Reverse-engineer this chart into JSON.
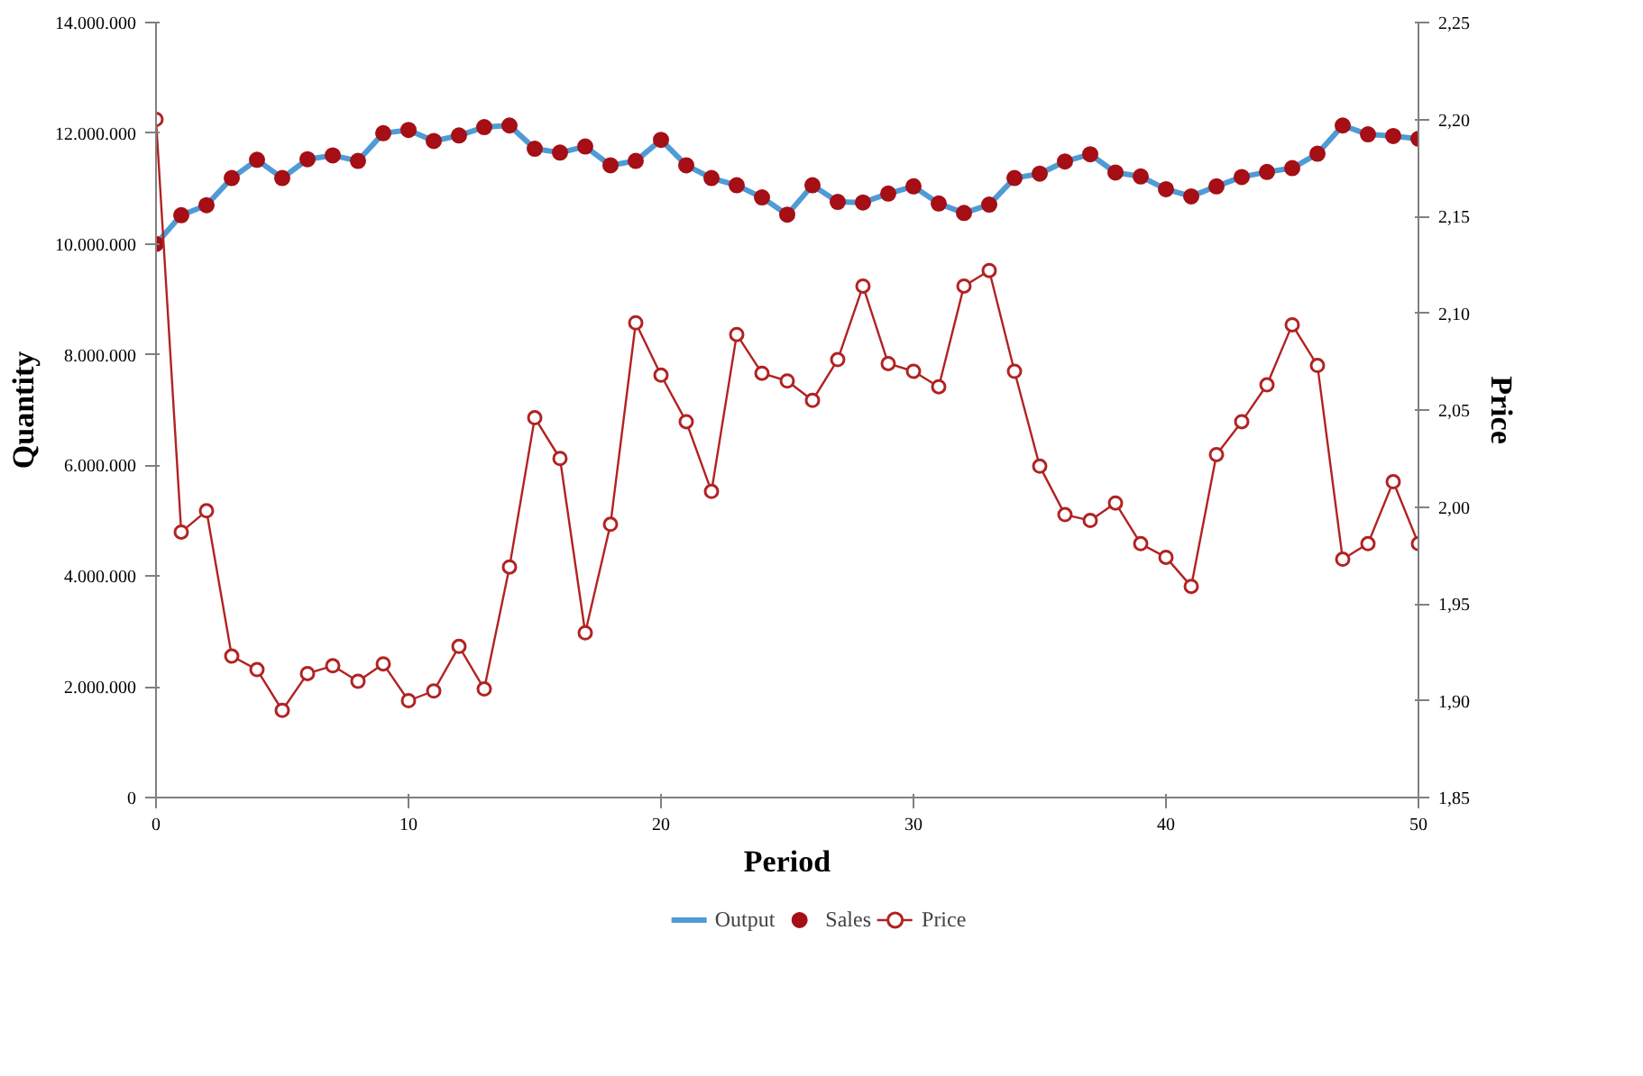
{
  "chart_data": {
    "type": "line",
    "xlabel": "Period",
    "ylabel": "Quantity",
    "y2label": "Price",
    "x": [
      0,
      1,
      2,
      3,
      4,
      5,
      6,
      7,
      8,
      9,
      10,
      11,
      12,
      13,
      14,
      15,
      16,
      17,
      18,
      19,
      20,
      21,
      22,
      23,
      24,
      25,
      26,
      27,
      28,
      29,
      30,
      31,
      32,
      33,
      34,
      35,
      36,
      37,
      38,
      39,
      40,
      41,
      42,
      43,
      44,
      45,
      46,
      47,
      48,
      49,
      50
    ],
    "series": [
      {
        "name": "Output",
        "color": "#4f9bd5",
        "marker": "none",
        "values": [
          10000000,
          10520000,
          10700000,
          11190000,
          11520000,
          11190000,
          11530000,
          11600000,
          11500000,
          12000000,
          12060000,
          11860000,
          11960000,
          12110000,
          12140000,
          11720000,
          11650000,
          11760000,
          11420000,
          11500000,
          11880000,
          11420000,
          11190000,
          11060000,
          10840000,
          10530000,
          11060000,
          10760000,
          10750000,
          10910000,
          11040000,
          10730000,
          10560000,
          10710000,
          11190000,
          11270000,
          11490000,
          11620000,
          11290000,
          11220000,
          10990000,
          10860000,
          11040000,
          11210000,
          11300000,
          11370000,
          11630000,
          12140000,
          11980000,
          11950000,
          11900000
        ]
      },
      {
        "name": "Sales",
        "type": "scatter",
        "color": "#a50f15",
        "marker": "circle",
        "values": [
          10000000,
          10520000,
          10700000,
          11190000,
          11520000,
          11190000,
          11530000,
          11600000,
          11500000,
          12000000,
          12060000,
          11860000,
          11960000,
          12110000,
          12140000,
          11720000,
          11650000,
          11760000,
          11420000,
          11500000,
          11880000,
          11420000,
          11190000,
          11060000,
          10840000,
          10530000,
          11060000,
          10760000,
          10750000,
          10910000,
          11040000,
          10730000,
          10560000,
          10710000,
          11190000,
          11270000,
          11490000,
          11620000,
          11290000,
          11220000,
          10990000,
          10860000,
          11040000,
          11210000,
          11300000,
          11370000,
          11630000,
          12140000,
          11980000,
          11950000,
          11900000
        ]
      },
      {
        "name": "Price",
        "axis": "y2",
        "color": "#b22222",
        "marker": "circle",
        "values": [
          2.2,
          1.987,
          1.998,
          1.923,
          1.916,
          1.895,
          1.914,
          1.918,
          1.91,
          1.919,
          1.9,
          1.905,
          1.928,
          1.906,
          1.969,
          2.046,
          2.025,
          1.935,
          1.991,
          2.095,
          2.068,
          2.044,
          2.008,
          2.089,
          2.069,
          2.065,
          2.055,
          2.076,
          2.114,
          2.074,
          2.07,
          2.062,
          2.114,
          2.122,
          2.07,
          2.021,
          1.996,
          1.993,
          2.002,
          1.981,
          1.974,
          1.959,
          2.027,
          2.044,
          2.063,
          2.094,
          2.073,
          1.973,
          1.981,
          2.013,
          1.981
        ]
      }
    ],
    "xlim": [
      0,
      50
    ],
    "xticks": [
      0,
      10,
      20,
      30,
      40,
      50
    ],
    "ylim": [
      0,
      14000000
    ],
    "yticks": [
      {
        "value": 0,
        "label": "0"
      },
      {
        "value": 2000000,
        "label": "2.000.000"
      },
      {
        "value": 4000000,
        "label": "4.000.000"
      },
      {
        "value": 6000000,
        "label": "6.000.000"
      },
      {
        "value": 8000000,
        "label": "8.000.000"
      },
      {
        "value": 10000000,
        "label": "10.000.000"
      },
      {
        "value": 12000000,
        "label": "12.000.000"
      },
      {
        "value": 14000000,
        "label": "14.000.000"
      }
    ],
    "y2lim": [
      1.85,
      2.25
    ],
    "y2ticks": [
      {
        "value": 1.85,
        "label": "1,85"
      },
      {
        "value": 1.9,
        "label": "1,90"
      },
      {
        "value": 1.95,
        "label": "1,95"
      },
      {
        "value": 2.0,
        "label": "2,00"
      },
      {
        "value": 2.05,
        "label": "2,05"
      },
      {
        "value": 2.1,
        "label": "2,10"
      },
      {
        "value": 2.15,
        "label": "2,15"
      },
      {
        "value": 2.2,
        "label": "2,20"
      },
      {
        "value": 2.25,
        "label": "2,25"
      }
    ],
    "grid": false,
    "legend": "bottom"
  }
}
